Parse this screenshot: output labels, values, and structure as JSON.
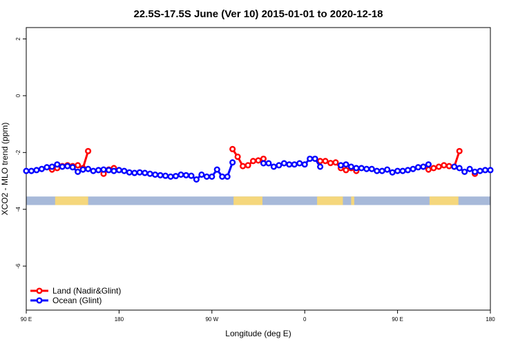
{
  "chart_data": {
    "type": "line",
    "title": "22.5S-17.5S June (Ver 10)   2015-01-01 to 2020-12-18",
    "x_label": "Longitude (deg E)",
    "y_label": "XCO2 - MLO trend (ppm)",
    "x": [
      90,
      95,
      100,
      105,
      110,
      115,
      120,
      125,
      130,
      135,
      140,
      145,
      150,
      155,
      160,
      165,
      170,
      175,
      180,
      185,
      190,
      195,
      200,
      205,
      210,
      215,
      220,
      225,
      230,
      235,
      240,
      245,
      250,
      255,
      260,
      265,
      270,
      275,
      280,
      285,
      290,
      295,
      300,
      305,
      310,
      315,
      320,
      325,
      330,
      335,
      340,
      345,
      350,
      355,
      360,
      365,
      370,
      375,
      380,
      385,
      390,
      395,
      400,
      405,
      410,
      415,
      420,
      425,
      430,
      435,
      440,
      445,
      450,
      455,
      460,
      465,
      470,
      475,
      480,
      485,
      490,
      495,
      500,
      505,
      510,
      515,
      520,
      525,
      530,
      535,
      540
    ],
    "series": [
      {
        "name": "Land (Nadir&Glint)",
        "color": "#ff0000",
        "values": [
          null,
          null,
          null,
          null,
          null,
          -2.6,
          -2.55,
          -2.48,
          -2.45,
          -2.48,
          -2.45,
          -2.55,
          -1.95,
          null,
          null,
          -2.75,
          -2.6,
          -2.55,
          null,
          null,
          null,
          null,
          null,
          null,
          null,
          null,
          null,
          null,
          null,
          null,
          null,
          null,
          null,
          null,
          null,
          null,
          null,
          null,
          null,
          null,
          -1.88,
          -2.15,
          -2.48,
          -2.45,
          -2.3,
          -2.28,
          -2.22,
          null,
          null,
          null,
          null,
          null,
          null,
          null,
          null,
          null,
          null,
          -2.3,
          -2.3,
          -2.37,
          -2.35,
          -2.55,
          -2.62,
          -2.55,
          -2.65,
          null,
          null,
          null,
          null,
          null,
          null,
          null,
          null,
          null,
          null,
          null,
          null,
          -2.5,
          -2.6,
          -2.55,
          -2.5,
          -2.45,
          -2.48,
          -2.5,
          -1.95,
          null,
          null,
          -2.75,
          null,
          null,
          null
        ]
      },
      {
        "name": "Ocean (Glint)",
        "color": "#0000ff",
        "values": [
          -2.65,
          -2.65,
          -2.62,
          -2.58,
          -2.52,
          -2.5,
          -2.42,
          -2.5,
          -2.48,
          -2.52,
          -2.68,
          -2.6,
          -2.58,
          -2.65,
          -2.62,
          -2.6,
          -2.62,
          -2.65,
          -2.62,
          -2.65,
          -2.7,
          -2.72,
          -2.7,
          -2.72,
          -2.75,
          -2.78,
          -2.8,
          -2.82,
          -2.85,
          -2.83,
          -2.78,
          -2.8,
          -2.82,
          -2.95,
          -2.78,
          -2.85,
          -2.85,
          -2.6,
          -2.85,
          -2.85,
          -2.35,
          null,
          null,
          null,
          null,
          null,
          -2.38,
          -2.38,
          -2.5,
          -2.45,
          -2.38,
          -2.42,
          -2.42,
          -2.38,
          -2.42,
          -2.22,
          -2.22,
          -2.5,
          null,
          null,
          null,
          -2.45,
          -2.42,
          -2.5,
          -2.55,
          -2.55,
          -2.58,
          -2.58,
          -2.65,
          -2.65,
          -2.6,
          -2.7,
          -2.65,
          -2.65,
          -2.62,
          -2.58,
          -2.52,
          -2.5,
          -2.42,
          null,
          null,
          null,
          null,
          -2.5,
          -2.55,
          -2.68,
          -2.58,
          -2.68,
          -2.65,
          -2.62,
          -2.62
        ]
      }
    ],
    "land_bands": [
      [
        118,
        150
      ],
      [
        291,
        319
      ],
      [
        372,
        397
      ],
      [
        405,
        408
      ],
      [
        481,
        509
      ]
    ],
    "band_ylim": [
      -3.85,
      -3.55
    ],
    "band_colors": {
      "ocean": "#a7b9d9",
      "land": "#f5d77c"
    },
    "xlim": [
      90,
      540
    ],
    "xticks": [
      {
        "value": 90,
        "label": "90 E"
      },
      180,
      {
        "value": 270,
        "label": "90 W"
      },
      {
        "value": 360,
        "label": "0"
      },
      {
        "value": 450,
        "label": "90 E"
      },
      {
        "value": 540,
        "label": "180"
      }
    ],
    "ylim": [
      -7.55,
      2.4
    ],
    "yticks": [
      -6,
      -4,
      -2,
      0,
      2
    ],
    "legend": "bottom-left"
  }
}
